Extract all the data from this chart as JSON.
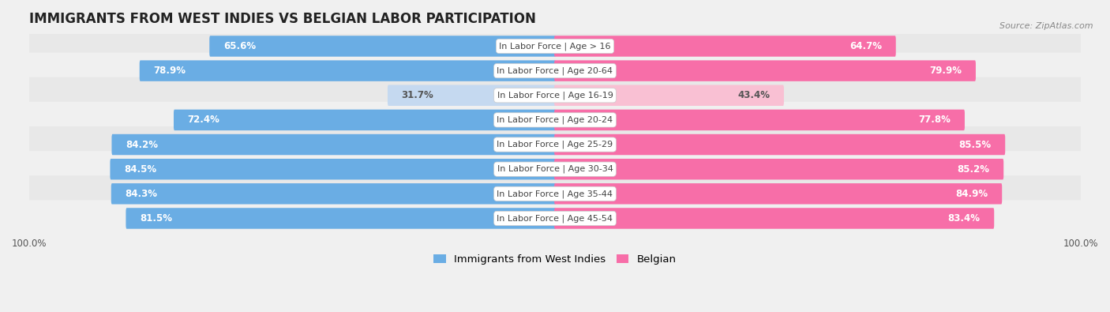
{
  "title": "IMMIGRANTS FROM WEST INDIES VS BELGIAN LABOR PARTICIPATION",
  "source": "Source: ZipAtlas.com",
  "categories": [
    "In Labor Force | Age > 16",
    "In Labor Force | Age 20-64",
    "In Labor Force | Age 16-19",
    "In Labor Force | Age 20-24",
    "In Labor Force | Age 25-29",
    "In Labor Force | Age 30-34",
    "In Labor Force | Age 35-44",
    "In Labor Force | Age 45-54"
  ],
  "west_indies_values": [
    65.6,
    78.9,
    31.7,
    72.4,
    84.2,
    84.5,
    84.3,
    81.5
  ],
  "belgian_values": [
    64.7,
    79.9,
    43.4,
    77.8,
    85.5,
    85.2,
    84.9,
    83.4
  ],
  "west_indies_color": "#6aade4",
  "belgian_color": "#f76ea8",
  "west_indies_color_light": "#c5d9f0",
  "belgian_color_light": "#f9c0d3",
  "background_color": "#f0f0f0",
  "row_alt_color": "#e8e8e8",
  "row_main_color": "#f0f0f0",
  "max_value": 100.0,
  "bar_height": 0.55,
  "label_fontsize": 8.5,
  "title_fontsize": 12,
  "legend_fontsize": 9.5,
  "axis_label_fontsize": 8.5,
  "category_fontsize": 8.0,
  "light_threshold": 55
}
